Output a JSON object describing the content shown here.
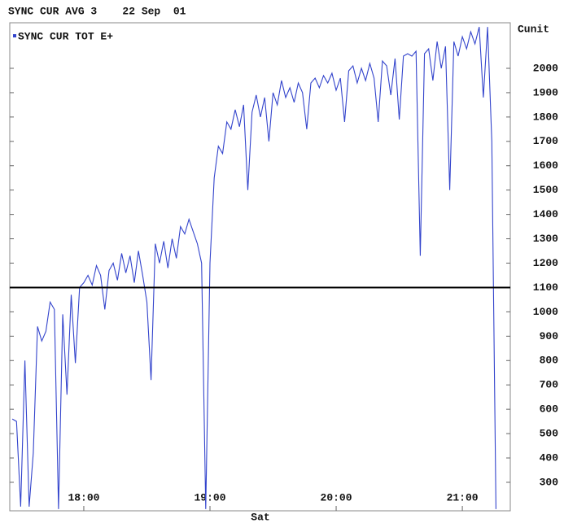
{
  "chart_data": {
    "type": "line",
    "title": "SYNC CUR AVG 3    22 Sep  01",
    "y_label": "Cunit",
    "x_label": "Sat",
    "x": [
      1046,
      1048,
      1050,
      1052,
      1054,
      1056,
      1058,
      1060,
      1062,
      1064,
      1066,
      1068,
      1070,
      1072,
      1074,
      1076,
      1078,
      1080,
      1082,
      1084,
      1086,
      1088,
      1090,
      1092,
      1094,
      1096,
      1098,
      1100,
      1102,
      1104,
      1106,
      1108,
      1110,
      1112,
      1114,
      1116,
      1118,
      1120,
      1122,
      1124,
      1126,
      1128,
      1130,
      1132,
      1134,
      1136,
      1138,
      1140,
      1142,
      1144,
      1146,
      1148,
      1150,
      1152,
      1154,
      1156,
      1158,
      1160,
      1162,
      1164,
      1166,
      1168,
      1170,
      1172,
      1174,
      1176,
      1178,
      1180,
      1182,
      1184,
      1186,
      1188,
      1190,
      1192,
      1194,
      1196,
      1198,
      1200,
      1202,
      1204,
      1206,
      1208,
      1210,
      1212,
      1214,
      1216,
      1218,
      1220,
      1222,
      1224,
      1226,
      1228,
      1230,
      1232,
      1234,
      1236,
      1238,
      1240,
      1242,
      1244,
      1246,
      1248,
      1250,
      1252,
      1254,
      1256,
      1258,
      1260,
      1262,
      1264,
      1266,
      1268,
      1270,
      1272,
      1274,
      1276
    ],
    "series": [
      {
        "name": "SYNC CUR TOT E+",
        "color": "#3344cc",
        "values": [
          560,
          550,
          200,
          800,
          200,
          420,
          940,
          880,
          920,
          1040,
          1010,
          190,
          990,
          660,
          1070,
          790,
          1100,
          1120,
          1150,
          1110,
          1190,
          1150,
          1010,
          1170,
          1200,
          1130,
          1240,
          1160,
          1230,
          1120,
          1250,
          1150,
          1040,
          720,
          1280,
          1200,
          1290,
          1180,
          1300,
          1220,
          1350,
          1320,
          1380,
          1330,
          1280,
          1200,
          190,
          1200,
          1550,
          1680,
          1650,
          1780,
          1750,
          1830,
          1760,
          1850,
          1500,
          1820,
          1890,
          1800,
          1880,
          1700,
          1900,
          1850,
          1950,
          1880,
          1920,
          1860,
          1940,
          1900,
          1750,
          1940,
          1960,
          1920,
          1970,
          1940,
          1980,
          1910,
          1960,
          1780,
          1990,
          2010,
          1940,
          2000,
          1950,
          2020,
          1960,
          1780,
          2030,
          2010,
          1890,
          2040,
          1790,
          2050,
          2060,
          2050,
          2070,
          1230,
          2060,
          2080,
          1950,
          2110,
          2000,
          2090,
          1500,
          2110,
          2050,
          2130,
          2080,
          2150,
          2100,
          2170,
          1880,
          2170,
          1700,
          190
        ]
      }
    ],
    "reference_line": 1100,
    "xlim": [
      1044.8,
      1282.8
    ],
    "ylim": [
      183,
      2187
    ],
    "xticks": [
      {
        "value": 1080,
        "label": "18:00"
      },
      {
        "value": 1140,
        "label": "19:00"
      },
      {
        "value": 1200,
        "label": "20:00"
      },
      {
        "value": 1260,
        "label": "21:00"
      }
    ],
    "yticks": [
      300,
      400,
      500,
      600,
      700,
      800,
      900,
      1000,
      1100,
      1200,
      1300,
      1400,
      1500,
      1600,
      1700,
      1800,
      1900,
      2000
    ]
  }
}
